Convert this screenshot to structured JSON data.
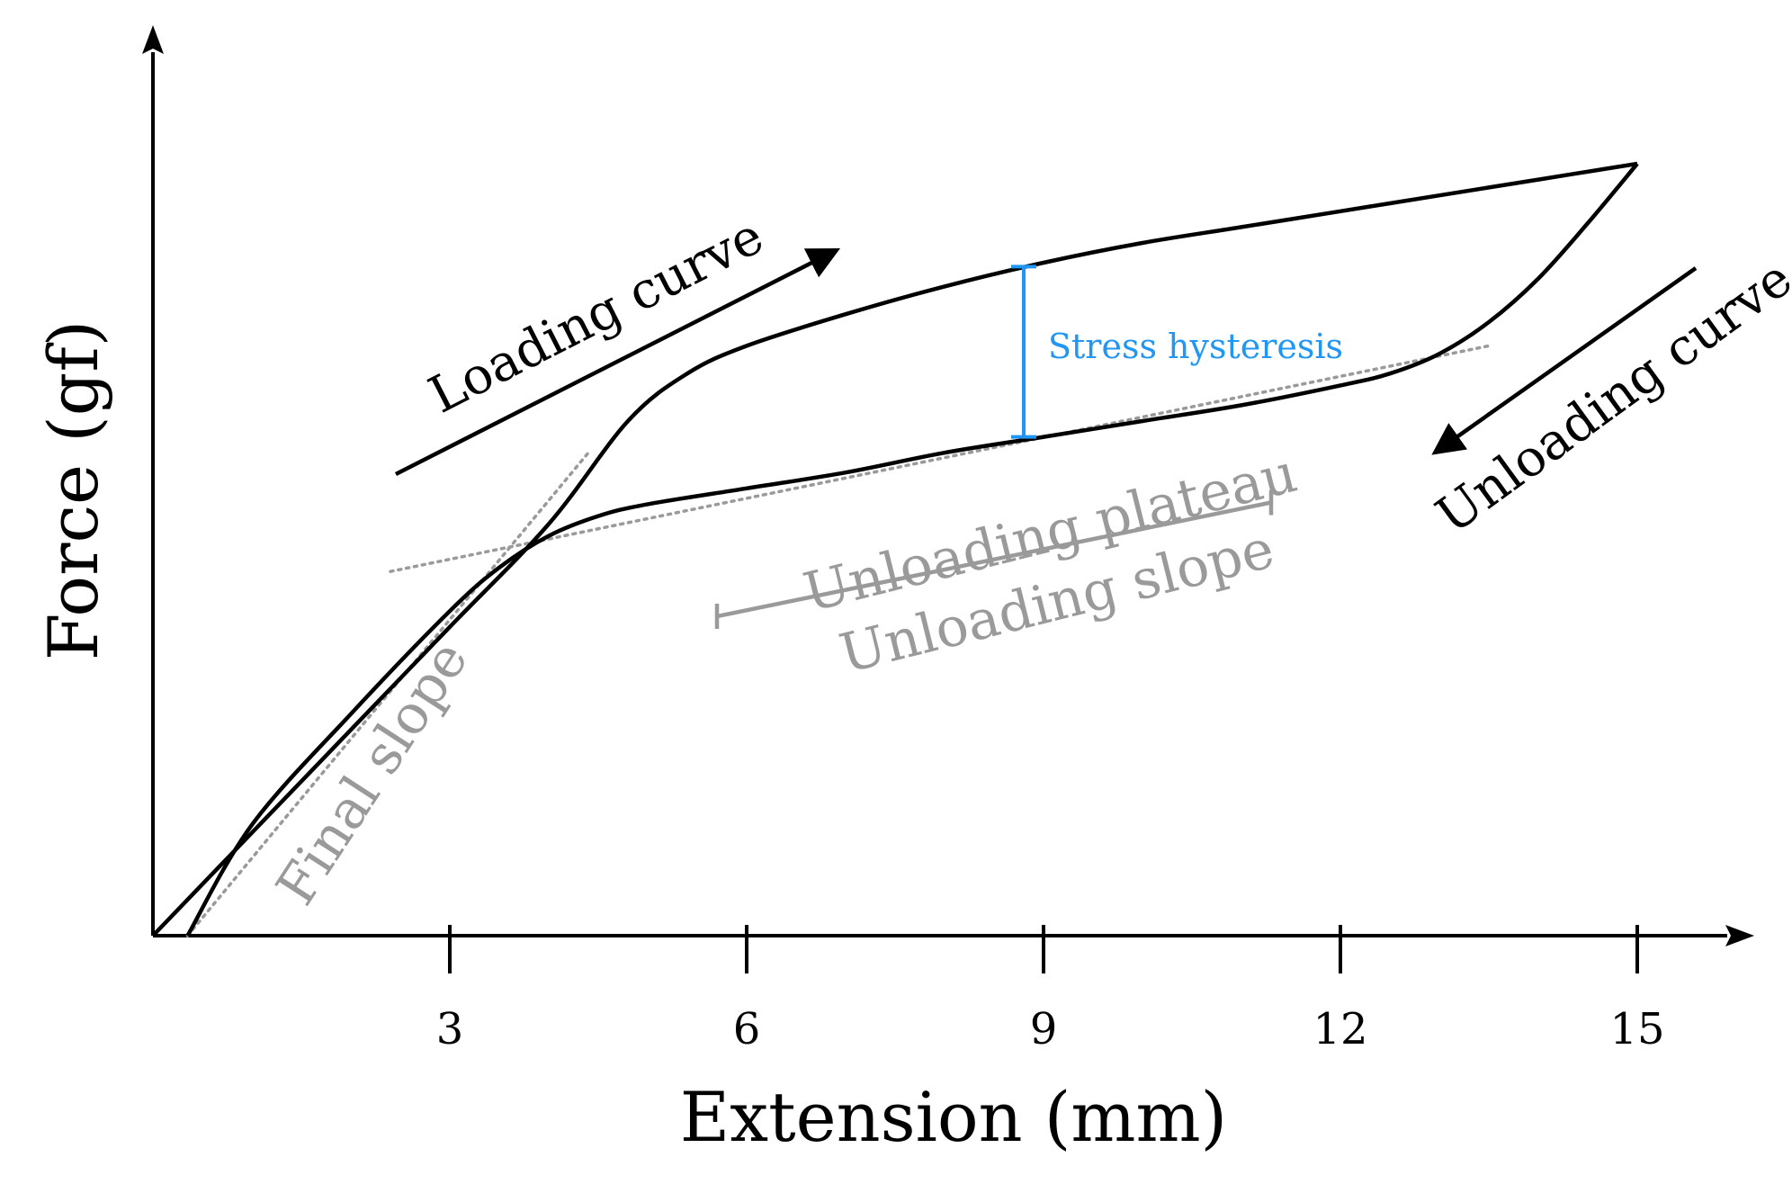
{
  "colors": {
    "axis": "#000000",
    "curve": "#000000",
    "fit_lines": "#9a9a9a",
    "gray_annotation": "#9a9a9a",
    "hysteresis": "#2196f3"
  },
  "chart_data": {
    "type": "line",
    "title": "",
    "xlabel": "Extension (mm)",
    "ylabel": "Force (gf)",
    "xlim": [
      0,
      16.5
    ],
    "ylim": [
      0,
      10
    ],
    "x_ticks": [
      3,
      6,
      9,
      12,
      15
    ],
    "x_tick_labels": [
      "3",
      "6",
      "9",
      "12",
      "15"
    ],
    "y_ticks": [],
    "grid": false,
    "legend": "none",
    "series": [
      {
        "key": "loading",
        "x": [
          0,
          1.0,
          2.0,
          3.0,
          4.0,
          4.8,
          5.4,
          6.0,
          7.0,
          8.0,
          9.0,
          10.0,
          11.0,
          12.0,
          13.0,
          14.0,
          15.0
        ],
        "y": [
          0,
          1.3,
          2.6,
          3.9,
          5.2,
          6.5,
          7.1,
          7.45,
          7.85,
          8.2,
          8.5,
          8.75,
          8.95,
          9.15,
          9.35,
          9.55,
          9.75
        ]
      },
      {
        "key": "unloading",
        "x": [
          15.0,
          14.5,
          14.0,
          13.5,
          13.0,
          12.5,
          12.0,
          11.0,
          10.0,
          9.0,
          8.0,
          7.0,
          6.0,
          5.0,
          4.5,
          4.0,
          3.5,
          3.0,
          2.0,
          1.0,
          0.35
        ],
        "y": [
          9.75,
          9.0,
          8.3,
          7.75,
          7.35,
          7.1,
          6.95,
          6.7,
          6.5,
          6.3,
          6.1,
          5.85,
          5.65,
          5.45,
          5.3,
          5.05,
          4.65,
          4.1,
          2.8,
          1.4,
          0
        ]
      }
    ],
    "fit_lines": [
      {
        "key": "final_slope_fit",
        "x": [
          0.35,
          4.4
        ],
        "y": [
          0,
          6.1
        ]
      },
      {
        "key": "plateau_fit",
        "x": [
          2.4,
          13.5
        ],
        "y": [
          4.6,
          7.45
        ]
      }
    ],
    "annotations": {
      "loading_curve": "Loading curve",
      "unloading_curve": "Unloading curve",
      "stress_hysteresis": "Stress hysteresis",
      "unloading_plateau": "Unloading plateau",
      "unloading_slope": "Unloading slope",
      "final_slope": "Final slope"
    },
    "hysteresis_marker": {
      "x": 8.8,
      "y_top": 8.45,
      "y_bottom": 6.3
    },
    "plateau_range": {
      "x_start": 5.7,
      "x_end": 11.3
    }
  }
}
